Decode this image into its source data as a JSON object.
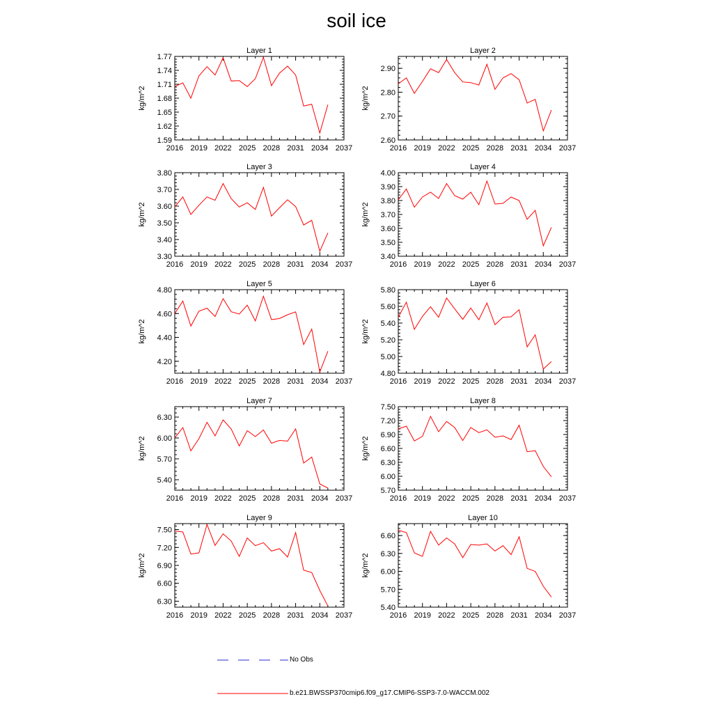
{
  "title": "soil ice",
  "legend": {
    "obs_label": "No Obs",
    "obs_color": "#2b2bd6",
    "model_label": "b.e21.BWSSP370cmip6.f09_g17.CMIP6-SSP3-7.0-WACCM.002",
    "model_color": "#ff0000"
  },
  "chart_data": [
    {
      "type": "line",
      "title": "Layer 1",
      "ylabel": "kg/m^2",
      "xlim": [
        2016,
        2037
      ],
      "ylim": [
        1.59,
        1.77
      ],
      "xticks": [
        2016,
        2019,
        2022,
        2025,
        2028,
        2031,
        2034,
        2037
      ],
      "yticks": [
        1.59,
        1.62,
        1.65,
        1.68,
        1.71,
        1.74,
        1.77
      ],
      "ytick_labels": [
        "1.59",
        "1.62",
        "1.65",
        "1.68",
        "1.71",
        "1.74",
        "1.77"
      ],
      "x": [
        2016,
        2017,
        2018,
        2019,
        2020,
        2021,
        2022,
        2023,
        2024,
        2025,
        2026,
        2027,
        2028,
        2029,
        2030,
        2031,
        2032,
        2033,
        2034,
        2035
      ],
      "series": [
        {
          "values": [
            1.705,
            1.713,
            1.68,
            1.728,
            1.748,
            1.73,
            1.767,
            1.717,
            1.718,
            1.705,
            1.722,
            1.768,
            1.707,
            1.734,
            1.749,
            1.73,
            1.663,
            1.667,
            1.605,
            1.666
          ]
        }
      ]
    },
    {
      "type": "line",
      "title": "Layer 2",
      "ylabel": "kg/m^2",
      "xlim": [
        2016,
        2037
      ],
      "ylim": [
        2.6,
        2.95
      ],
      "xticks": [
        2016,
        2019,
        2022,
        2025,
        2028,
        2031,
        2034,
        2037
      ],
      "yticks": [
        2.6,
        2.7,
        2.8,
        2.9
      ],
      "ytick_labels": [
        "2.60",
        "2.70",
        "2.80",
        "2.90"
      ],
      "x": [
        2016,
        2017,
        2018,
        2019,
        2020,
        2021,
        2022,
        2023,
        2024,
        2025,
        2026,
        2027,
        2028,
        2029,
        2030,
        2031,
        2032,
        2033,
        2034,
        2035
      ],
      "series": [
        {
          "values": [
            2.835,
            2.86,
            2.795,
            2.845,
            2.898,
            2.882,
            2.937,
            2.882,
            2.843,
            2.84,
            2.83,
            2.917,
            2.812,
            2.86,
            2.878,
            2.852,
            2.755,
            2.77,
            2.638,
            2.725
          ]
        }
      ]
    },
    {
      "type": "line",
      "title": "Layer 3",
      "ylabel": "kg/m^2",
      "xlim": [
        2016,
        2037
      ],
      "ylim": [
        3.3,
        3.8
      ],
      "xticks": [
        2016,
        2019,
        2022,
        2025,
        2028,
        2031,
        2034,
        2037
      ],
      "yticks": [
        3.3,
        3.4,
        3.5,
        3.6,
        3.7,
        3.8
      ],
      "ytick_labels": [
        "3.30",
        "3.40",
        "3.50",
        "3.60",
        "3.70",
        "3.80"
      ],
      "x": [
        2016,
        2017,
        2018,
        2019,
        2020,
        2021,
        2022,
        2023,
        2024,
        2025,
        2026,
        2027,
        2028,
        2029,
        2030,
        2031,
        2032,
        2033,
        2034,
        2035
      ],
      "series": [
        {
          "values": [
            3.595,
            3.655,
            3.55,
            3.605,
            3.655,
            3.635,
            3.735,
            3.645,
            3.595,
            3.62,
            3.58,
            3.712,
            3.54,
            3.59,
            3.638,
            3.597,
            3.487,
            3.515,
            3.33,
            3.44
          ]
        }
      ]
    },
    {
      "type": "line",
      "title": "Layer 4",
      "ylabel": "kg/m^2",
      "xlim": [
        2016,
        2037
      ],
      "ylim": [
        3.4,
        4.0
      ],
      "xticks": [
        2016,
        2019,
        2022,
        2025,
        2028,
        2031,
        2034,
        2037
      ],
      "yticks": [
        3.4,
        3.5,
        3.6,
        3.7,
        3.8,
        3.9,
        4.0
      ],
      "ytick_labels": [
        "3.40",
        "3.50",
        "3.60",
        "3.70",
        "3.80",
        "3.90",
        "4.00"
      ],
      "x": [
        2016,
        2017,
        2018,
        2019,
        2020,
        2021,
        2022,
        2023,
        2024,
        2025,
        2026,
        2027,
        2028,
        2029,
        2030,
        2031,
        2032,
        2033,
        2034,
        2035
      ],
      "series": [
        {
          "values": [
            3.805,
            3.883,
            3.752,
            3.825,
            3.86,
            3.815,
            3.922,
            3.835,
            3.81,
            3.86,
            3.77,
            3.94,
            3.775,
            3.78,
            3.825,
            3.8,
            3.665,
            3.73,
            3.475,
            3.607
          ]
        }
      ]
    },
    {
      "type": "line",
      "title": "Layer 5",
      "ylabel": "kg/m^2",
      "xlim": [
        2016,
        2037
      ],
      "ylim": [
        4.1,
        4.8
      ],
      "xticks": [
        2016,
        2019,
        2022,
        2025,
        2028,
        2031,
        2034,
        2037
      ],
      "yticks": [
        4.2,
        4.4,
        4.6,
        4.8
      ],
      "ytick_labels": [
        "4.20",
        "4.40",
        "4.60",
        "4.80"
      ],
      "x": [
        2016,
        2017,
        2018,
        2019,
        2020,
        2021,
        2022,
        2023,
        2024,
        2025,
        2026,
        2027,
        2028,
        2029,
        2030,
        2031,
        2032,
        2033,
        2034,
        2035
      ],
      "series": [
        {
          "values": [
            4.6,
            4.705,
            4.495,
            4.62,
            4.645,
            4.575,
            4.725,
            4.615,
            4.595,
            4.67,
            4.538,
            4.745,
            4.55,
            4.558,
            4.59,
            4.614,
            4.34,
            4.47,
            4.11,
            4.285
          ]
        }
      ]
    },
    {
      "type": "line",
      "title": "Layer 6",
      "ylabel": "kg/m^2",
      "xlim": [
        2016,
        2037
      ],
      "ylim": [
        4.8,
        5.8
      ],
      "xticks": [
        2016,
        2019,
        2022,
        2025,
        2028,
        2031,
        2034,
        2037
      ],
      "yticks": [
        4.8,
        5.0,
        5.2,
        5.4,
        5.6,
        5.8
      ],
      "ytick_labels": [
        "4.80",
        "5.00",
        "5.20",
        "5.40",
        "5.60",
        "5.80"
      ],
      "x": [
        2016,
        2017,
        2018,
        2019,
        2020,
        2021,
        2022,
        2023,
        2024,
        2025,
        2026,
        2027,
        2028,
        2029,
        2030,
        2031,
        2032,
        2033,
        2034,
        2035
      ],
      "series": [
        {
          "values": [
            5.47,
            5.65,
            5.325,
            5.48,
            5.595,
            5.47,
            5.7,
            5.57,
            5.445,
            5.58,
            5.44,
            5.64,
            5.38,
            5.47,
            5.475,
            5.56,
            5.115,
            5.26,
            4.85,
            4.94
          ]
        }
      ]
    },
    {
      "type": "line",
      "title": "Layer 7",
      "ylabel": "kg/m^2",
      "xlim": [
        2016,
        2037
      ],
      "ylim": [
        5.25,
        6.45
      ],
      "xticks": [
        2016,
        2019,
        2022,
        2025,
        2028,
        2031,
        2034,
        2037
      ],
      "yticks": [
        5.4,
        5.7,
        6.0,
        6.3
      ],
      "ytick_labels": [
        "5.40",
        "5.70",
        "6.00",
        "6.30"
      ],
      "x": [
        2016,
        2017,
        2018,
        2019,
        2020,
        2021,
        2022,
        2023,
        2024,
        2025,
        2026,
        2027,
        2028,
        2029,
        2030,
        2031,
        2032,
        2033,
        2034,
        2035
      ],
      "series": [
        {
          "values": [
            6.0,
            6.15,
            5.815,
            5.99,
            6.225,
            6.03,
            6.26,
            6.13,
            5.885,
            6.105,
            6.02,
            6.115,
            5.925,
            5.965,
            5.955,
            6.13,
            5.64,
            5.725,
            5.34,
            5.28
          ]
        }
      ]
    },
    {
      "type": "line",
      "title": "Layer 8",
      "ylabel": "kg/m^2",
      "xlim": [
        2016,
        2037
      ],
      "ylim": [
        5.7,
        7.5
      ],
      "xticks": [
        2016,
        2019,
        2022,
        2025,
        2028,
        2031,
        2034,
        2037
      ],
      "yticks": [
        5.7,
        6.0,
        6.3,
        6.6,
        6.9,
        7.2,
        7.5
      ],
      "ytick_labels": [
        "5.70",
        "6.00",
        "6.30",
        "6.60",
        "6.90",
        "7.20",
        "7.50"
      ],
      "x": [
        2016,
        2017,
        2018,
        2019,
        2020,
        2021,
        2022,
        2023,
        2024,
        2025,
        2026,
        2027,
        2028,
        2029,
        2030,
        2031,
        2032,
        2033,
        2034,
        2035
      ],
      "series": [
        {
          "values": [
            7.02,
            7.08,
            6.76,
            6.86,
            7.29,
            6.96,
            7.18,
            7.05,
            6.77,
            7.05,
            6.94,
            7.0,
            6.84,
            6.87,
            6.79,
            7.1,
            6.53,
            6.55,
            6.21,
            5.99
          ]
        }
      ]
    },
    {
      "type": "line",
      "title": "Layer 9",
      "ylabel": "kg/m^2",
      "xlim": [
        2016,
        2037
      ],
      "ylim": [
        6.2,
        7.6
      ],
      "xticks": [
        2016,
        2019,
        2022,
        2025,
        2028,
        2031,
        2034,
        2037
      ],
      "yticks": [
        6.3,
        6.6,
        6.9,
        7.2,
        7.5
      ],
      "ytick_labels": [
        "6.30",
        "6.60",
        "6.90",
        "7.20",
        "7.50"
      ],
      "x": [
        2016,
        2017,
        2018,
        2019,
        2020,
        2021,
        2022,
        2023,
        2024,
        2025,
        2026,
        2027,
        2028,
        2029,
        2030,
        2031,
        2032,
        2033,
        2034,
        2035
      ],
      "series": [
        {
          "values": [
            7.475,
            7.46,
            7.09,
            7.11,
            7.585,
            7.235,
            7.43,
            7.31,
            7.05,
            7.36,
            7.23,
            7.28,
            7.14,
            7.18,
            7.04,
            7.45,
            6.82,
            6.78,
            6.48,
            6.22
          ]
        }
      ]
    },
    {
      "type": "line",
      "title": "Layer 10",
      "ylabel": "kg/m^2",
      "xlim": [
        2016,
        2037
      ],
      "ylim": [
        5.4,
        6.8
      ],
      "xticks": [
        2016,
        2019,
        2022,
        2025,
        2028,
        2031,
        2034,
        2037
      ],
      "yticks": [
        5.4,
        5.7,
        6.0,
        6.3,
        6.6
      ],
      "ytick_labels": [
        "5.40",
        "5.70",
        "6.00",
        "6.30",
        "6.60"
      ],
      "x": [
        2016,
        2017,
        2018,
        2019,
        2020,
        2021,
        2022,
        2023,
        2024,
        2025,
        2026,
        2027,
        2028,
        2029,
        2030,
        2031,
        2032,
        2033,
        2034,
        2035
      ],
      "series": [
        {
          "values": [
            6.69,
            6.65,
            6.31,
            6.25,
            6.67,
            6.44,
            6.56,
            6.46,
            6.23,
            6.45,
            6.44,
            6.46,
            6.34,
            6.43,
            6.28,
            6.58,
            6.05,
            6.0,
            5.75,
            5.57
          ]
        }
      ]
    }
  ]
}
